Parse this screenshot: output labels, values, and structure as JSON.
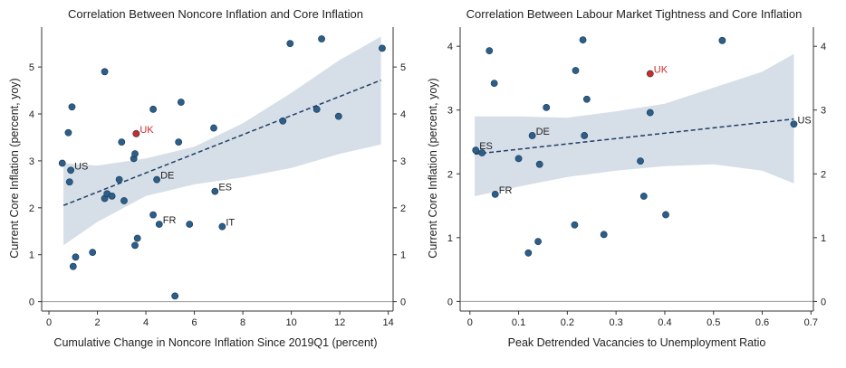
{
  "chart_data": [
    {
      "type": "scatter",
      "title": "Correlation Between Noncore Inflation and Core Inflation",
      "xlabel": "Cumulative Change in Noncore Inflation Since 2019Q1 (percent)",
      "ylabel": "Current Core Inflation (percent, yoy)",
      "xlim": [
        -0.3,
        14.2
      ],
      "ylim": [
        -0.2,
        5.85
      ],
      "xticks": [
        0,
        2,
        4,
        6,
        8,
        10,
        12,
        14
      ],
      "yticks": [
        0,
        1,
        2,
        3,
        4,
        5
      ],
      "zero_line": 0,
      "fit_line": {
        "x": [
          0.6,
          13.7
        ],
        "y": [
          2.05,
          4.72
        ]
      },
      "confidence_band": {
        "x": [
          0.6,
          2,
          4,
          6,
          8,
          10,
          12,
          13.7
        ],
        "upper": [
          2.95,
          2.9,
          3.05,
          3.3,
          3.8,
          4.45,
          5.15,
          5.65
        ],
        "lower": [
          1.2,
          1.7,
          2.25,
          2.5,
          2.65,
          2.85,
          3.15,
          3.35
        ]
      },
      "points": [
        {
          "x": 0.55,
          "y": 2.95,
          "label": ""
        },
        {
          "x": 0.8,
          "y": 3.6,
          "label": ""
        },
        {
          "x": 0.85,
          "y": 2.55,
          "label": ""
        },
        {
          "x": 0.9,
          "y": 2.8,
          "label": "US"
        },
        {
          "x": 0.95,
          "y": 4.15,
          "label": ""
        },
        {
          "x": 1.0,
          "y": 0.75,
          "label": ""
        },
        {
          "x": 1.1,
          "y": 0.95,
          "label": ""
        },
        {
          "x": 1.8,
          "y": 1.05,
          "label": ""
        },
        {
          "x": 2.3,
          "y": 4.9,
          "label": ""
        },
        {
          "x": 2.3,
          "y": 2.2,
          "label": ""
        },
        {
          "x": 2.4,
          "y": 2.3,
          "label": ""
        },
        {
          "x": 2.6,
          "y": 2.25,
          "label": ""
        },
        {
          "x": 2.9,
          "y": 2.6,
          "label": ""
        },
        {
          "x": 3.0,
          "y": 3.4,
          "label": ""
        },
        {
          "x": 3.1,
          "y": 2.15,
          "label": ""
        },
        {
          "x": 3.5,
          "y": 3.05,
          "label": ""
        },
        {
          "x": 3.55,
          "y": 3.15,
          "label": ""
        },
        {
          "x": 3.55,
          "y": 1.2,
          "label": ""
        },
        {
          "x": 3.6,
          "y": 3.58,
          "label": "UK",
          "highlight": true
        },
        {
          "x": 3.65,
          "y": 1.35,
          "label": ""
        },
        {
          "x": 4.3,
          "y": 4.1,
          "label": ""
        },
        {
          "x": 4.3,
          "y": 1.85,
          "label": ""
        },
        {
          "x": 4.45,
          "y": 2.6,
          "label": "DE"
        },
        {
          "x": 4.55,
          "y": 1.65,
          "label": "FR"
        },
        {
          "x": 5.2,
          "y": 0.12,
          "label": ""
        },
        {
          "x": 5.35,
          "y": 3.4,
          "label": ""
        },
        {
          "x": 5.45,
          "y": 4.25,
          "label": ""
        },
        {
          "x": 5.8,
          "y": 1.65,
          "label": ""
        },
        {
          "x": 6.8,
          "y": 3.7,
          "label": ""
        },
        {
          "x": 6.85,
          "y": 2.35,
          "label": "ES"
        },
        {
          "x": 7.15,
          "y": 1.6,
          "label": "IT"
        },
        {
          "x": 9.65,
          "y": 3.85,
          "label": ""
        },
        {
          "x": 9.95,
          "y": 5.5,
          "label": ""
        },
        {
          "x": 11.05,
          "y": 4.1,
          "label": ""
        },
        {
          "x": 11.25,
          "y": 5.6,
          "label": ""
        },
        {
          "x": 11.95,
          "y": 3.95,
          "label": ""
        },
        {
          "x": 13.75,
          "y": 5.4,
          "label": ""
        }
      ]
    },
    {
      "type": "scatter",
      "title": "Correlation Between Labour Market Tightness and Core Inflation",
      "xlabel": "Peak Detrended Vacancies to Unemployment Ratio",
      "ylabel": "Current Core Inflation (percent, yoy)",
      "xlim": [
        -0.02,
        0.705
      ],
      "ylim": [
        -0.15,
        4.3
      ],
      "xticks": [
        0,
        0.1,
        0.2,
        0.3,
        0.4,
        0.5,
        0.6,
        0.7
      ],
      "xtick_labels": [
        "0",
        "0.1",
        "0.2",
        "0.3",
        "0.4",
        "0.5",
        "0.6",
        "0.7"
      ],
      "yticks": [
        0,
        1,
        2,
        3,
        4
      ],
      "zero_line": 0,
      "fit_line": {
        "x": [
          0.01,
          0.665
        ],
        "y": [
          2.31,
          2.86
        ]
      },
      "confidence_band": {
        "x": [
          0.01,
          0.1,
          0.2,
          0.3,
          0.4,
          0.5,
          0.6,
          0.665
        ],
        "upper": [
          2.9,
          2.9,
          2.88,
          2.98,
          3.1,
          3.35,
          3.6,
          3.88
        ],
        "lower": [
          1.65,
          1.8,
          1.95,
          2.05,
          2.12,
          2.15,
          2.05,
          1.85
        ]
      },
      "points": [
        {
          "x": 0.012,
          "y": 2.37,
          "label": "ES"
        },
        {
          "x": 0.025,
          "y": 2.33,
          "label": ""
        },
        {
          "x": 0.04,
          "y": 3.93,
          "label": ""
        },
        {
          "x": 0.05,
          "y": 3.42,
          "label": ""
        },
        {
          "x": 0.052,
          "y": 1.68,
          "label": "FR"
        },
        {
          "x": 0.1,
          "y": 2.24,
          "label": ""
        },
        {
          "x": 0.12,
          "y": 0.76,
          "label": ""
        },
        {
          "x": 0.128,
          "y": 2.6,
          "label": "DE"
        },
        {
          "x": 0.14,
          "y": 0.94,
          "label": ""
        },
        {
          "x": 0.143,
          "y": 2.15,
          "label": ""
        },
        {
          "x": 0.157,
          "y": 3.04,
          "label": ""
        },
        {
          "x": 0.215,
          "y": 1.2,
          "label": ""
        },
        {
          "x": 0.217,
          "y": 3.62,
          "label": ""
        },
        {
          "x": 0.232,
          "y": 4.1,
          "label": ""
        },
        {
          "x": 0.235,
          "y": 2.6,
          "label": ""
        },
        {
          "x": 0.24,
          "y": 3.17,
          "label": ""
        },
        {
          "x": 0.275,
          "y": 1.05,
          "label": ""
        },
        {
          "x": 0.35,
          "y": 2.2,
          "label": ""
        },
        {
          "x": 0.357,
          "y": 1.65,
          "label": ""
        },
        {
          "x": 0.37,
          "y": 2.96,
          "label": ""
        },
        {
          "x": 0.37,
          "y": 3.57,
          "label": "UK",
          "highlight": true
        },
        {
          "x": 0.402,
          "y": 1.36,
          "label": ""
        },
        {
          "x": 0.518,
          "y": 4.09,
          "label": ""
        },
        {
          "x": 0.665,
          "y": 2.78,
          "label": "US"
        }
      ]
    }
  ],
  "colors": {
    "point": "#2b5f8a",
    "highlight": "#cc2b2b",
    "band": "#d6dee8",
    "fit": "#1f3f66",
    "zero": "#9a9a9a",
    "axis": "#333333",
    "text": "#222222"
  }
}
